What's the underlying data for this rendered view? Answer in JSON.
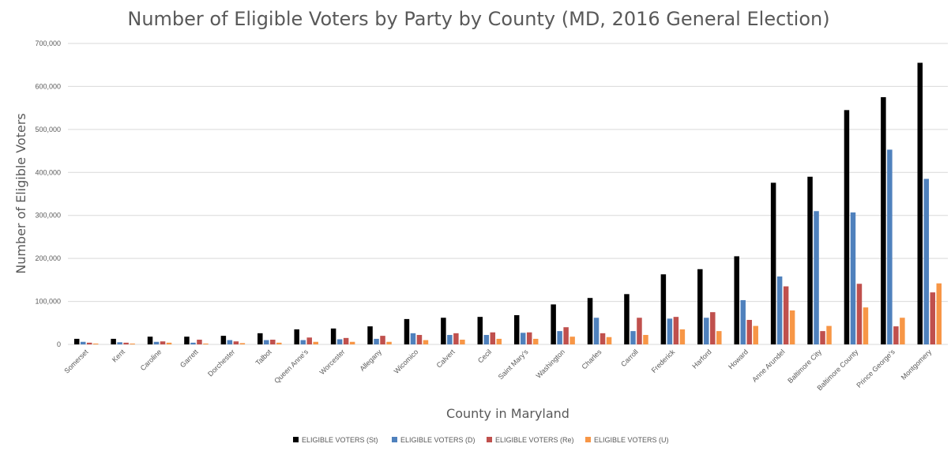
{
  "chart_data": {
    "type": "bar",
    "title": "Number of Eligible Voters by Party by County (MD, 2016 General Election)",
    "xlabel": "County in Maryland",
    "ylabel": "Number of Eligible Voters",
    "ylim": [
      0,
      700000
    ],
    "yticks": [
      "0",
      "100,000",
      "200,000",
      "300,000",
      "400,000",
      "500,000",
      "600,000",
      "700,000"
    ],
    "grid": true,
    "legend_position": "bottom",
    "categories": [
      "Somerset",
      "Kent",
      "Caroline",
      "Garrett",
      "Dorchester",
      "Talbot",
      "Queen Anne's",
      "Worcester",
      "Allegany",
      "Wicomico",
      "Calvert",
      "Cecil",
      "Saint Mary's",
      "Washington",
      "Charles",
      "Carroll",
      "Frederick",
      "Harford",
      "Howard",
      "Anne Arundel",
      "Baltimore City",
      "Baltimore County",
      "Prince George's",
      "Montgomery"
    ],
    "series": [
      {
        "name": "ELIGIBLE VOTERS (St)",
        "color": "#000000",
        "values": [
          13000,
          13000,
          18000,
          18000,
          20000,
          26000,
          35000,
          37000,
          42000,
          59000,
          62000,
          64000,
          68000,
          93000,
          108000,
          117000,
          163000,
          175000,
          205000,
          376000,
          390000,
          545000,
          575000,
          655000
        ]
      },
      {
        "name": "ELIGIBLE VOTERS (D)",
        "color": "#4f81bd",
        "values": [
          6000,
          5000,
          6000,
          4000,
          10000,
          10000,
          10000,
          12000,
          13000,
          26000,
          22000,
          22000,
          27000,
          31000,
          62000,
          31000,
          60000,
          62000,
          103000,
          158000,
          310000,
          307000,
          453000,
          385000
        ]
      },
      {
        "name": "ELIGIBLE VOTERS (Re)",
        "color": "#c0504d",
        "values": [
          4000,
          4000,
          7000,
          11000,
          7000,
          11000,
          16000,
          15000,
          20000,
          22000,
          26000,
          28000,
          28000,
          40000,
          26000,
          62000,
          64000,
          75000,
          57000,
          135000,
          31000,
          141000,
          42000,
          121000
        ]
      },
      {
        "name": "ELIGIBLE VOTERS (U)",
        "color": "#f79646",
        "values": [
          2000,
          2000,
          4000,
          2000,
          3000,
          4000,
          6000,
          6000,
          6000,
          10000,
          11000,
          13000,
          13000,
          18000,
          17000,
          22000,
          35000,
          31000,
          43000,
          79000,
          43000,
          86000,
          62000,
          142000
        ]
      }
    ]
  }
}
